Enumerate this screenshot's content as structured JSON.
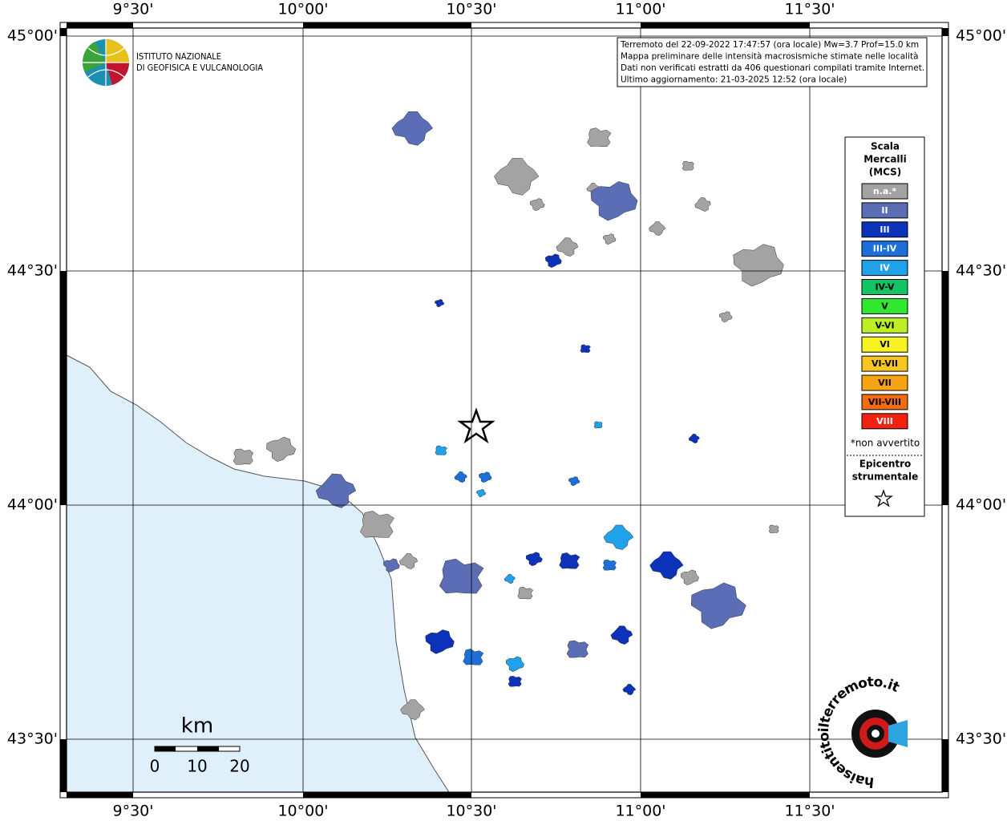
{
  "map": {
    "lon_labels": [
      "9°30'",
      "10°00'",
      "10°30'",
      "11°00'",
      "11°30'"
    ],
    "lat_labels": [
      "45°00'",
      "44°30'",
      "44°00'",
      "43°30'"
    ],
    "info_box": [
      "Terremoto del 22-09-2022 17:47:57 (ora locale) Mw=3.7 Prof=15.0 km",
      "Mappa preliminare delle intensità macrosismiche stimate nelle località",
      "Dati non verificati estratti da 406 questionari compilati tramite Internet.",
      "Ultimo aggiornamento: 21-03-2025 12:52 (ora locale)"
    ],
    "logo": {
      "line1": "ISTITUTO NAZIONALE",
      "line2": "DI GEOFISICA E VULCANOLOGIA"
    },
    "legend": {
      "title": [
        "Scala",
        "Mercalli",
        "(MCS)"
      ],
      "items": [
        {
          "label": "n.a.*",
          "color": "#a3a3a3",
          "text_color": "#ffffff"
        },
        {
          "label": "II",
          "color": "#5b6db4",
          "text_color": "#ffffff"
        },
        {
          "label": "III",
          "color": "#0b32b8",
          "text_color": "#ffffff"
        },
        {
          "label": "III-IV",
          "color": "#1a6fd8",
          "text_color": "#ffffff"
        },
        {
          "label": "IV",
          "color": "#1fa2ea",
          "text_color": "#ffffff"
        },
        {
          "label": "IV-V",
          "color": "#12c464",
          "text_color": "#000000"
        },
        {
          "label": "V",
          "color": "#2fe82f",
          "text_color": "#000000"
        },
        {
          "label": "V-VI",
          "color": "#bcf022",
          "text_color": "#000000"
        },
        {
          "label": "VI",
          "color": "#f7f222",
          "text_color": "#000000"
        },
        {
          "label": "VI-VII",
          "color": "#f7c622",
          "text_color": "#000000"
        },
        {
          "label": "VII",
          "color": "#f7a412",
          "text_color": "#000000"
        },
        {
          "label": "VII-VIII",
          "color": "#f26c12",
          "text_color": "#000000"
        },
        {
          "label": "VIII",
          "color": "#f22212",
          "text_color": "#ffffff"
        }
      ],
      "footnote": "*non avvertito",
      "epicentre": [
        "Epicentro",
        "strumentale"
      ]
    },
    "scale": {
      "unit": "km",
      "labels": [
        "0",
        "10",
        "20"
      ]
    },
    "site_logo": "haisentitoilterremoto.it"
  }
}
